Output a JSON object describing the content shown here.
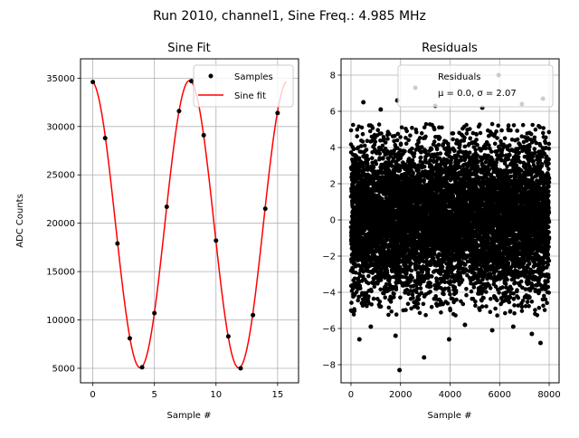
{
  "figure": {
    "suptitle": "Run 2010, channel1, Sine Freq.: 4.985 MHz"
  },
  "chart_data": [
    {
      "type": "line",
      "title": "Sine Fit",
      "xlabel": "Sample #",
      "ylabel": "ADC Counts",
      "xlim": [
        -1.0,
        16.7
      ],
      "ylim": [
        3500,
        37000
      ],
      "xticks": [
        0,
        5,
        10,
        15
      ],
      "yticks": [
        5000,
        10000,
        15000,
        20000,
        25000,
        30000,
        35000
      ],
      "grid": true,
      "legend": {
        "placement": "top-right",
        "entries": [
          "Samples",
          "Sine fit"
        ]
      },
      "series": [
        {
          "name": "Samples",
          "kind": "scatter",
          "color": "#000000",
          "x": [
            0,
            1,
            2,
            3,
            4,
            5,
            6,
            7,
            8,
            9,
            10,
            11,
            12,
            13,
            14,
            15
          ],
          "y": [
            34600,
            28800,
            17900,
            8100,
            5100,
            10700,
            21700,
            31600,
            34700,
            29100,
            18200,
            8300,
            5000,
            10500,
            21500,
            31400
          ]
        },
        {
          "name": "Sine fit",
          "kind": "line",
          "color": "#ff0000",
          "model": {
            "offset": 19900,
            "amplitude": 14850,
            "period": 8.0,
            "phase_deg": 97
          },
          "x_range": [
            0,
            15.7
          ]
        }
      ]
    },
    {
      "type": "scatter",
      "title": "Residuals",
      "xlabel": "Sample #",
      "ylabel": "",
      "xlim": [
        -400,
        8400
      ],
      "ylim": [
        -9,
        8.9
      ],
      "xticks": [
        0,
        2000,
        4000,
        6000,
        8000
      ],
      "yticks": [
        -8,
        -6,
        -4,
        -2,
        0,
        2,
        4,
        6,
        8
      ],
      "grid": true,
      "legend": {
        "placement": "top-right",
        "entries": [
          "Residuals"
        ],
        "stats": "μ = 0.0, σ = 2.07"
      },
      "series": [
        {
          "name": "Residuals",
          "color": "#000000",
          "n_points": 8000,
          "mean": 0.0,
          "sigma": 2.07,
          "outliers": [
            [
              1960,
              -8.3
            ],
            [
              2950,
              -7.6
            ],
            [
              340,
              -6.6
            ],
            [
              1800,
              -6.4
            ],
            [
              3960,
              -6.6
            ],
            [
              7650,
              -6.8
            ],
            [
              6550,
              -5.9
            ],
            [
              500,
              6.5
            ],
            [
              2600,
              7.3
            ],
            [
              5960,
              8.0
            ],
            [
              1870,
              6.6
            ],
            [
              7750,
              6.7
            ],
            [
              4600,
              -5.8
            ],
            [
              5300,
              6.2
            ],
            [
              7300,
              -6.3
            ],
            [
              1200,
              6.1
            ],
            [
              3400,
              6.3
            ],
            [
              6900,
              6.4
            ],
            [
              800,
              -5.9
            ],
            [
              5700,
              -6.1
            ]
          ]
        }
      ]
    }
  ]
}
